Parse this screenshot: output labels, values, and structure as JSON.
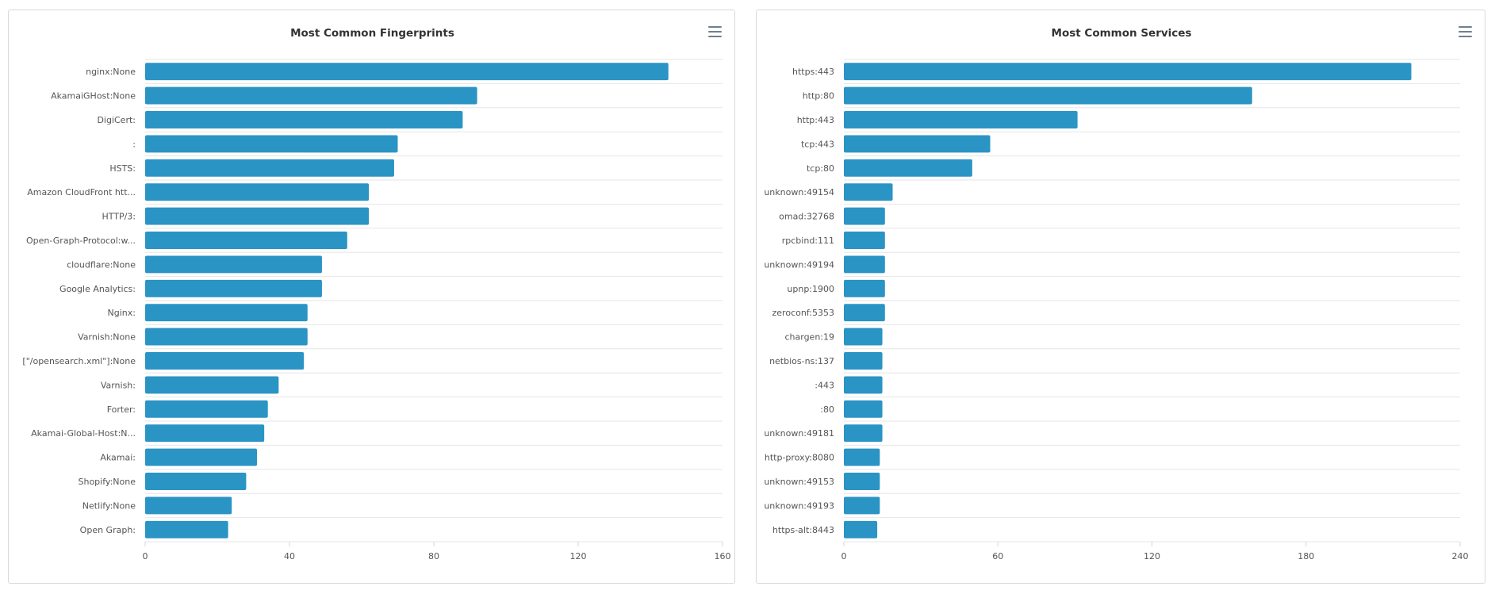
{
  "chart_data": [
    {
      "type": "bar",
      "orientation": "horizontal",
      "title": "Most Common Fingerprints",
      "categories": [
        "nginx:None",
        "AkamaiGHost:None",
        "DigiCert:",
        ":",
        "HSTS:",
        "Amazon CloudFront htt...",
        "HTTP/3:",
        "Open-Graph-Protocol:w...",
        "cloudflare:None",
        "Google Analytics:",
        "Nginx:",
        "Varnish:None",
        "[\"/opensearch.xml\"]:None",
        "Varnish:",
        "Forter:",
        "Akamai-Global-Host:N...",
        "Akamai:",
        "Shopify:None",
        "Netlify:None",
        "Open Graph:"
      ],
      "values": [
        145,
        92,
        88,
        70,
        69,
        62,
        62,
        56,
        49,
        49,
        45,
        45,
        44,
        37,
        34,
        33,
        31,
        28,
        24,
        23
      ],
      "xlim": [
        0,
        160
      ],
      "xticks": [
        0,
        40,
        80,
        120,
        160
      ],
      "color": "#2a94c5",
      "xlabel": "",
      "ylabel": ""
    },
    {
      "type": "bar",
      "orientation": "horizontal",
      "title": "Most Common Services",
      "categories": [
        "https:443",
        "http:80",
        "http:443",
        "tcp:443",
        "tcp:80",
        "unknown:49154",
        "omad:32768",
        "rpcbind:111",
        "unknown:49194",
        "upnp:1900",
        "zeroconf:5353",
        "chargen:19",
        "netbios-ns:137",
        ":443",
        ":80",
        "unknown:49181",
        "http-proxy:8080",
        "unknown:49153",
        "unknown:49193",
        "https-alt:8443"
      ],
      "values": [
        221,
        159,
        91,
        57,
        50,
        19,
        16,
        16,
        16,
        16,
        16,
        15,
        15,
        15,
        15,
        15,
        14,
        14,
        14,
        13
      ],
      "xlim": [
        0,
        240
      ],
      "xticks": [
        0,
        60,
        120,
        180,
        240
      ],
      "color": "#2a94c5",
      "xlabel": "",
      "ylabel": ""
    }
  ]
}
